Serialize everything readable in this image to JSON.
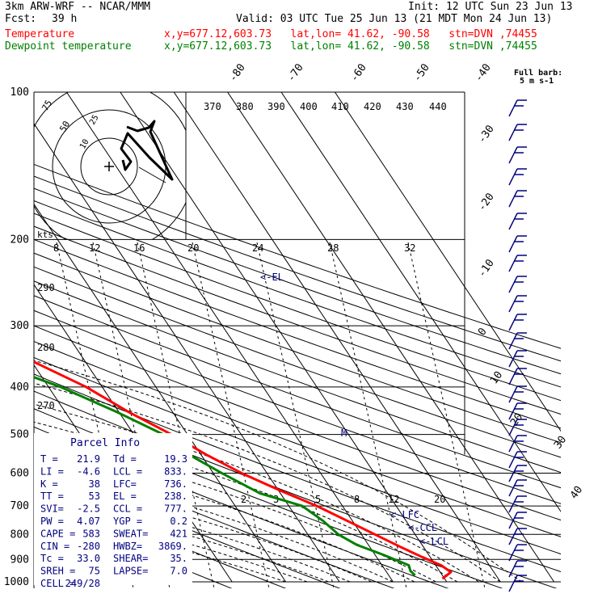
{
  "header": {
    "title": "3km ARW-WRF -- NCAR/MMM",
    "init": "Init: 12 UTC Sun 23 Jun 13",
    "fcst_label": "Fcst:",
    "fcst_value": "39 h",
    "valid": "Valid: 03 UTC Tue 25 Jun 13 (21 MDT Mon 24 Jun 13)",
    "temp_label": "Temperature",
    "temp_info": "x,y=677.12,603.73   lat,lon= 41.62, -90.58   stn=DVN ,74455",
    "dew_label": "Dewpoint temperature",
    "dew_info": "x,y=677.12,603.73   lat,lon= 41.62, -90.58   stn=DVN ,74455",
    "barb_legend_1": "Full barb:",
    "barb_legend_2": "5 m s-1"
  },
  "colors": {
    "temperature": "#ff0000",
    "dewpoint": "#008000",
    "text": "#000000",
    "annotation": "#000080"
  },
  "hodograph": {
    "kts_label": "kts",
    "ring_labels": [
      "10",
      "25",
      "50",
      "75"
    ]
  },
  "parcel_info": {
    "title": "Parcel Info",
    "rows": [
      [
        "T  =",
        "21.9",
        "Td =",
        "19.3"
      ],
      [
        "LI =",
        "-4.6",
        "LCL =",
        "833."
      ],
      [
        "K  =",
        "38",
        "LFC=",
        "736."
      ],
      [
        "TT =",
        "53",
        "EL =",
        "238."
      ],
      [
        "SVI=",
        "-2.5",
        "CCL =",
        "777."
      ],
      [
        "PW =",
        "4.07",
        "YGP =",
        "0.2"
      ],
      [
        "CAPE =",
        "583",
        "SWEAT=",
        "421"
      ],
      [
        "CIN =",
        "-280",
        "HWBZ=",
        "3869."
      ],
      [
        "Tc =",
        "33.0",
        "SHEAR=",
        "35."
      ],
      [
        "SREH =",
        "75",
        "LAPSE=",
        "7.0"
      ],
      [
        "CELL =",
        "249/28",
        "",
        ""
      ]
    ]
  },
  "chart_data": {
    "type": "line",
    "title": "",
    "pressure_levels": [
      "100",
      "200",
      "300",
      "400",
      "500",
      "600",
      "700",
      "800",
      "900",
      "1000"
    ],
    "pressure_range_hpa": [
      100,
      1000
    ],
    "y_scale": "log-pressure",
    "isotherm_labels": [
      "-80",
      "-70",
      "-60",
      "-50",
      "-40",
      "-30",
      "-20",
      "-10",
      "0",
      "10",
      "20",
      "30",
      "40"
    ],
    "dry_adiabat_labels": [
      "370",
      "380",
      "390",
      "400",
      "410",
      "420",
      "430",
      "440",
      "290",
      "280",
      "270"
    ],
    "mixing_ratio_labels_upper": [
      "8",
      "12",
      "16",
      "20",
      "24",
      "28",
      "32"
    ],
    "mixing_ratio_labels_lower": [
      "2",
      "3",
      "5",
      "8",
      "12",
      "20"
    ],
    "level_markers": [
      "<-EL",
      "<-LFC",
      "<-CCL",
      "<-LCL",
      "M"
    ],
    "series": [
      {
        "name": "Temperature",
        "color": "#ff0000",
        "points": [
          {
            "p": 985,
            "t": 19.6
          },
          {
            "p": 955,
            "t": 22.0
          },
          {
            "p": 925,
            "t": 21.0
          },
          {
            "p": 890,
            "t": 18.5
          },
          {
            "p": 850,
            "t": 15.8
          },
          {
            "p": 800,
            "t": 12.5
          },
          {
            "p": 750,
            "t": 9.0
          },
          {
            "p": 700,
            "t": 5.2
          },
          {
            "p": 650,
            "t": 0.2
          },
          {
            "p": 600,
            "t": -4.7
          },
          {
            "p": 550,
            "t": -9.0
          },
          {
            "p": 500,
            "t": -13.0
          },
          {
            "p": 450,
            "t": -18.2
          },
          {
            "p": 400,
            "t": -23.0
          },
          {
            "p": 350,
            "t": -30.5
          },
          {
            "p": 300,
            "t": -39.2
          },
          {
            "p": 250,
            "t": -48.3
          },
          {
            "p": 200,
            "t": -57.7
          },
          {
            "p": 175,
            "t": -59.0
          },
          {
            "p": 150,
            "t": -61.2
          },
          {
            "p": 130,
            "t": -63.8
          },
          {
            "p": 115,
            "t": -64.0
          },
          {
            "p": 103,
            "t": -64.6
          }
        ]
      },
      {
        "name": "Dewpoint temperature",
        "color": "#008000",
        "points": [
          {
            "p": 970,
            "t": 14.9
          },
          {
            "p": 950,
            "t": 14.6
          },
          {
            "p": 925,
            "t": 15.0
          },
          {
            "p": 880,
            "t": 11.5
          },
          {
            "p": 840,
            "t": 7.8
          },
          {
            "p": 800,
            "t": 5.7
          },
          {
            "p": 750,
            "t": 4.5
          },
          {
            "p": 700,
            "t": 2.5
          },
          {
            "p": 660,
            "t": -3.8
          },
          {
            "p": 600,
            "t": -8.4
          },
          {
            "p": 550,
            "t": -12.2
          },
          {
            "p": 500,
            "t": -14.5
          },
          {
            "p": 450,
            "t": -20.4
          },
          {
            "p": 400,
            "t": -27.8
          },
          {
            "p": 350,
            "t": -38.6
          },
          {
            "p": 300,
            "t": -44.5
          },
          {
            "p": 250,
            "t": -54.8
          },
          {
            "p": 210,
            "t": -64.0
          },
          {
            "p": 190,
            "t": -68.5
          },
          {
            "p": 170,
            "t": -73.5
          },
          {
            "p": 150,
            "t": -77.5
          },
          {
            "p": 130,
            "t": -78.9
          },
          {
            "p": 115,
            "t": -82.1
          },
          {
            "p": 101,
            "t": -85.8
          }
        ]
      }
    ],
    "legend": [
      "Temperature",
      "Dewpoint temperature"
    ]
  }
}
